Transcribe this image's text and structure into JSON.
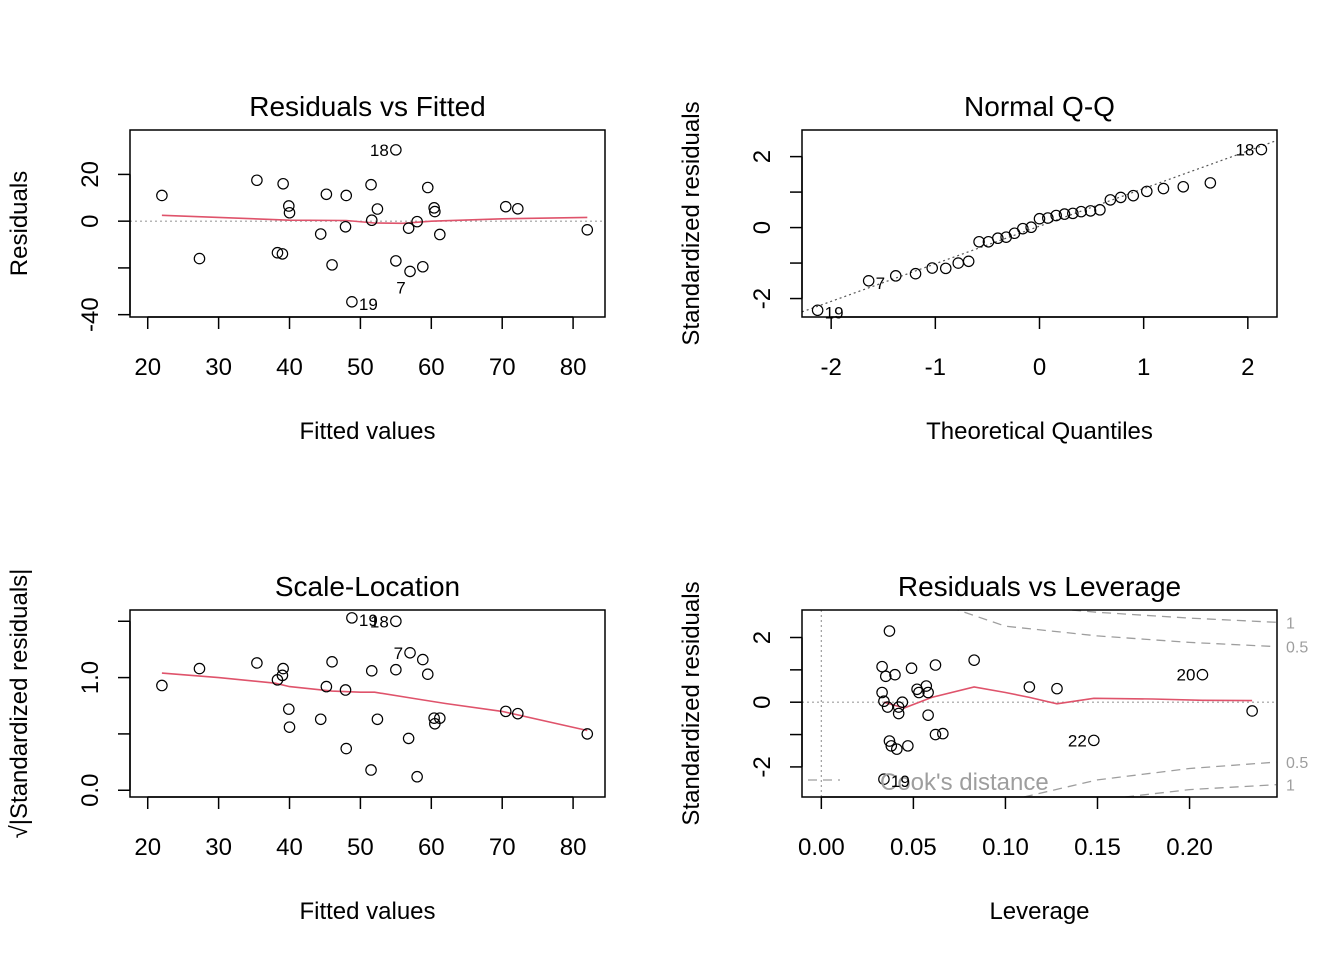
{
  "chart_data": [
    {
      "type": "scatter",
      "title": "Residuals vs Fitted",
      "xlabel": "Fitted values",
      "ylabel": "Residuals",
      "xlim": [
        17.5,
        84.5
      ],
      "ylim": [
        -41,
        39
      ],
      "xticks": [
        20,
        30,
        40,
        50,
        60,
        70,
        80
      ],
      "yticks": [
        -40,
        -20,
        0,
        20
      ],
      "ytick_labels": [
        "-40",
        "",
        "0",
        "20"
      ],
      "refline": {
        "type": "h",
        "value": 0
      },
      "points": [
        [
          22.0,
          11
        ],
        [
          27.3,
          -16
        ],
        [
          35.4,
          17.5
        ],
        [
          38.3,
          -13.5
        ],
        [
          39.0,
          -14
        ],
        [
          39.1,
          16
        ],
        [
          39.9,
          6.5
        ],
        [
          40.0,
          3.6
        ],
        [
          44.4,
          -5.5
        ],
        [
          45.2,
          11.5
        ],
        [
          46.0,
          -18.7
        ],
        [
          47.9,
          -2.4
        ],
        [
          48.0,
          11
        ],
        [
          48.8,
          -34.5
        ],
        [
          51.5,
          15.6
        ],
        [
          51.6,
          0.4
        ],
        [
          52.4,
          5.2
        ],
        [
          55.0,
          -17
        ],
        [
          55.0,
          30.5
        ],
        [
          56.8,
          -3
        ],
        [
          57.0,
          -21.5
        ],
        [
          58.0,
          -0.2
        ],
        [
          58.8,
          -19.5
        ],
        [
          59.5,
          14.4
        ],
        [
          60.4,
          5.7
        ],
        [
          60.5,
          4.1
        ],
        [
          61.2,
          -5.7
        ],
        [
          70.5,
          6.2
        ],
        [
          72.2,
          5.3
        ],
        [
          82.0,
          -3.7
        ]
      ],
      "smoother": [
        [
          22,
          2.5
        ],
        [
          30,
          1.6
        ],
        [
          40,
          0.4
        ],
        [
          48,
          0.3
        ],
        [
          52,
          -0.8
        ],
        [
          56,
          -0.9
        ],
        [
          60,
          0.0
        ],
        [
          70,
          1.0
        ],
        [
          82,
          1.6
        ]
      ],
      "point_labels": [
        {
          "text": "18",
          "x": 55.0,
          "y": 30.5,
          "side": "left"
        },
        {
          "text": "7",
          "x": 57.0,
          "y": -21.5,
          "side": "below"
        },
        {
          "text": "19",
          "x": 48.8,
          "y": -34.5,
          "side": "right"
        }
      ]
    },
    {
      "type": "scatter",
      "title": "Normal Q-Q",
      "xlabel": "Theoretical Quantiles",
      "ylabel": "Standardized residuals",
      "xlim": [
        -2.28,
        2.28
      ],
      "ylim": [
        -2.52,
        2.75
      ],
      "xticks": [
        -2,
        -1,
        0,
        1,
        2
      ],
      "yticks": [
        -2,
        -1,
        0,
        1,
        2
      ],
      "ytick_labels": [
        "-2",
        "",
        "0",
        "",
        "2"
      ],
      "refline": {
        "type": "abline",
        "slope": 1.06,
        "intercept": 0.04
      },
      "points": [
        [
          -2.13,
          -2.33
        ],
        [
          -1.64,
          -1.5
        ],
        [
          -1.38,
          -1.36
        ],
        [
          -1.19,
          -1.3
        ],
        [
          -1.03,
          -1.14
        ],
        [
          -0.9,
          -1.15
        ],
        [
          -0.78,
          -1.0
        ],
        [
          -0.68,
          -0.95
        ],
        [
          -0.58,
          -0.4
        ],
        [
          -0.49,
          -0.4
        ],
        [
          -0.4,
          -0.3
        ],
        [
          -0.32,
          -0.27
        ],
        [
          -0.24,
          -0.16
        ],
        [
          -0.16,
          -0.03
        ],
        [
          -0.08,
          0.01
        ],
        [
          0.0,
          0.25
        ],
        [
          0.08,
          0.27
        ],
        [
          0.16,
          0.34
        ],
        [
          0.24,
          0.38
        ],
        [
          0.32,
          0.4
        ],
        [
          0.4,
          0.45
        ],
        [
          0.49,
          0.47
        ],
        [
          0.58,
          0.5
        ],
        [
          0.68,
          0.78
        ],
        [
          0.78,
          0.85
        ],
        [
          0.9,
          0.9
        ],
        [
          1.03,
          1.02
        ],
        [
          1.19,
          1.1
        ],
        [
          1.38,
          1.15
        ],
        [
          1.64,
          1.26
        ],
        [
          2.13,
          2.2
        ]
      ],
      "point_labels": [
        {
          "text": "18",
          "x": 2.13,
          "y": 2.2,
          "side": "left"
        },
        {
          "text": "7",
          "x": -1.64,
          "y": -1.5,
          "side": "right"
        },
        {
          "text": "19",
          "x": -2.13,
          "y": -2.33,
          "side": "right"
        }
      ]
    },
    {
      "type": "scatter",
      "title": "Scale-Location",
      "xlabel": "Fitted values",
      "ylabel": "√|Standardized residuals|",
      "xlim": [
        17.5,
        84.5
      ],
      "ylim": [
        -0.06,
        1.6
      ],
      "xticks": [
        20,
        30,
        40,
        50,
        60,
        70,
        80
      ],
      "yticks": [
        0.0,
        0.5,
        1.0,
        1.5
      ],
      "ytick_labels": [
        "0.0",
        "",
        "1.0",
        ""
      ],
      "points": [
        [
          22.0,
          0.93
        ],
        [
          27.3,
          1.08
        ],
        [
          35.4,
          1.13
        ],
        [
          38.3,
          0.98
        ],
        [
          39.0,
          1.02
        ],
        [
          39.1,
          1.08
        ],
        [
          39.9,
          0.72
        ],
        [
          40.0,
          0.56
        ],
        [
          44.4,
          0.63
        ],
        [
          45.2,
          0.92
        ],
        [
          46.0,
          1.14
        ],
        [
          47.9,
          0.89
        ],
        [
          48.0,
          0.37
        ],
        [
          48.8,
          1.53
        ],
        [
          51.5,
          0.18
        ],
        [
          51.6,
          1.06
        ],
        [
          52.4,
          0.63
        ],
        [
          55.0,
          1.07
        ],
        [
          55.0,
          1.5
        ],
        [
          56.8,
          0.46
        ],
        [
          57.0,
          1.22
        ],
        [
          58.0,
          0.12
        ],
        [
          58.8,
          1.16
        ],
        [
          59.5,
          1.03
        ],
        [
          60.4,
          0.64
        ],
        [
          60.5,
          0.59
        ],
        [
          61.2,
          0.64
        ],
        [
          70.5,
          0.7
        ],
        [
          72.2,
          0.68
        ],
        [
          82.0,
          0.5
        ]
      ],
      "smoother": [
        [
          22,
          1.04
        ],
        [
          30,
          1.0
        ],
        [
          38,
          0.95
        ],
        [
          40,
          0.92
        ],
        [
          46,
          0.88
        ],
        [
          50,
          0.87
        ],
        [
          52,
          0.87
        ],
        [
          58,
          0.81
        ],
        [
          62,
          0.77
        ],
        [
          70,
          0.7
        ],
        [
          82,
          0.53
        ]
      ],
      "point_labels": [
        {
          "text": "19",
          "x": 48.8,
          "y": 1.53,
          "side": "right"
        },
        {
          "text": "18",
          "x": 55.0,
          "y": 1.5,
          "side": "left"
        },
        {
          "text": "7",
          "x": 57.0,
          "y": 1.22,
          "side": "left"
        }
      ]
    },
    {
      "type": "scatter",
      "title": "Residuals vs Leverage",
      "xlabel": "Leverage",
      "ylabel": "Standardized residuals",
      "xlim": [
        -0.0105,
        0.2475
      ],
      "ylim": [
        -2.93,
        2.85
      ],
      "xticks": [
        0.0,
        0.05,
        0.1,
        0.15,
        0.2
      ],
      "xtick_labels": [
        "0.00",
        "0.05",
        "0.10",
        "0.15",
        "0.20"
      ],
      "yticks": [
        -2,
        -1,
        0,
        1,
        2
      ],
      "ytick_labels": [
        "-2",
        "",
        "0",
        "",
        "2"
      ],
      "refline": {
        "type": "h",
        "value": 0
      },
      "vline": 0,
      "points": [
        [
          0.033,
          1.1
        ],
        [
          0.033,
          0.3
        ],
        [
          0.034,
          0.03
        ],
        [
          0.035,
          0.8
        ],
        [
          0.036,
          -0.15
        ],
        [
          0.034,
          -2.38
        ],
        [
          0.037,
          2.2
        ],
        [
          0.037,
          -1.2
        ],
        [
          0.038,
          -1.35
        ],
        [
          0.04,
          0.85
        ],
        [
          0.041,
          -1.45
        ],
        [
          0.042,
          -0.15
        ],
        [
          0.042,
          -0.35
        ],
        [
          0.044,
          0.0
        ],
        [
          0.047,
          -1.35
        ],
        [
          0.049,
          1.05
        ],
        [
          0.052,
          0.4
        ],
        [
          0.053,
          0.3
        ],
        [
          0.057,
          0.5
        ],
        [
          0.058,
          0.3
        ],
        [
          0.058,
          -0.4
        ],
        [
          0.062,
          1.15
        ],
        [
          0.062,
          -1.0
        ],
        [
          0.066,
          -0.97
        ],
        [
          0.083,
          1.3
        ],
        [
          0.113,
          0.47
        ],
        [
          0.128,
          0.42
        ],
        [
          0.148,
          -1.18
        ],
        [
          0.207,
          0.85
        ],
        [
          0.234,
          -0.27
        ]
      ],
      "smoother": [
        [
          0.034,
          0.0
        ],
        [
          0.045,
          -0.18
        ],
        [
          0.06,
          0.15
        ],
        [
          0.083,
          0.47
        ],
        [
          0.1,
          0.3
        ],
        [
          0.113,
          0.15
        ],
        [
          0.128,
          -0.05
        ],
        [
          0.148,
          0.12
        ],
        [
          0.18,
          0.1
        ],
        [
          0.207,
          0.06
        ],
        [
          0.234,
          0.05
        ]
      ],
      "point_labels": [
        {
          "text": "20",
          "x": 0.207,
          "y": 0.85,
          "side": "left"
        },
        {
          "text": "22",
          "x": 0.148,
          "y": -1.18,
          "side": "left"
        },
        {
          "text": "19",
          "x": 0.034,
          "y": -2.38,
          "side": "right"
        }
      ],
      "cooks_distance": {
        "legend": "Cook's distance",
        "contours": [
          {
            "label": "1",
            "sign": 1,
            "points": [
              [
                0.12,
                2.93
              ],
              [
                0.15,
                2.78
              ],
              [
                0.2,
                2.6
              ],
              [
                0.247,
                2.47
              ]
            ]
          },
          {
            "label": "0.5",
            "sign": 1,
            "points": [
              [
                0.07,
                2.93
              ],
              [
                0.1,
                2.35
              ],
              [
                0.15,
                2.05
              ],
              [
                0.2,
                1.85
              ],
              [
                0.247,
                1.72
              ]
            ]
          },
          {
            "label": "0.5",
            "sign": -1,
            "points": [
              [
                0.11,
                -2.93
              ],
              [
                0.15,
                -2.4
              ],
              [
                0.2,
                -2.05
              ],
              [
                0.247,
                -1.85
              ]
            ]
          },
          {
            "label": "1",
            "sign": -1,
            "points": [
              [
                0.165,
                -2.93
              ],
              [
                0.2,
                -2.7
              ],
              [
                0.247,
                -2.55
              ]
            ]
          }
        ]
      }
    }
  ]
}
